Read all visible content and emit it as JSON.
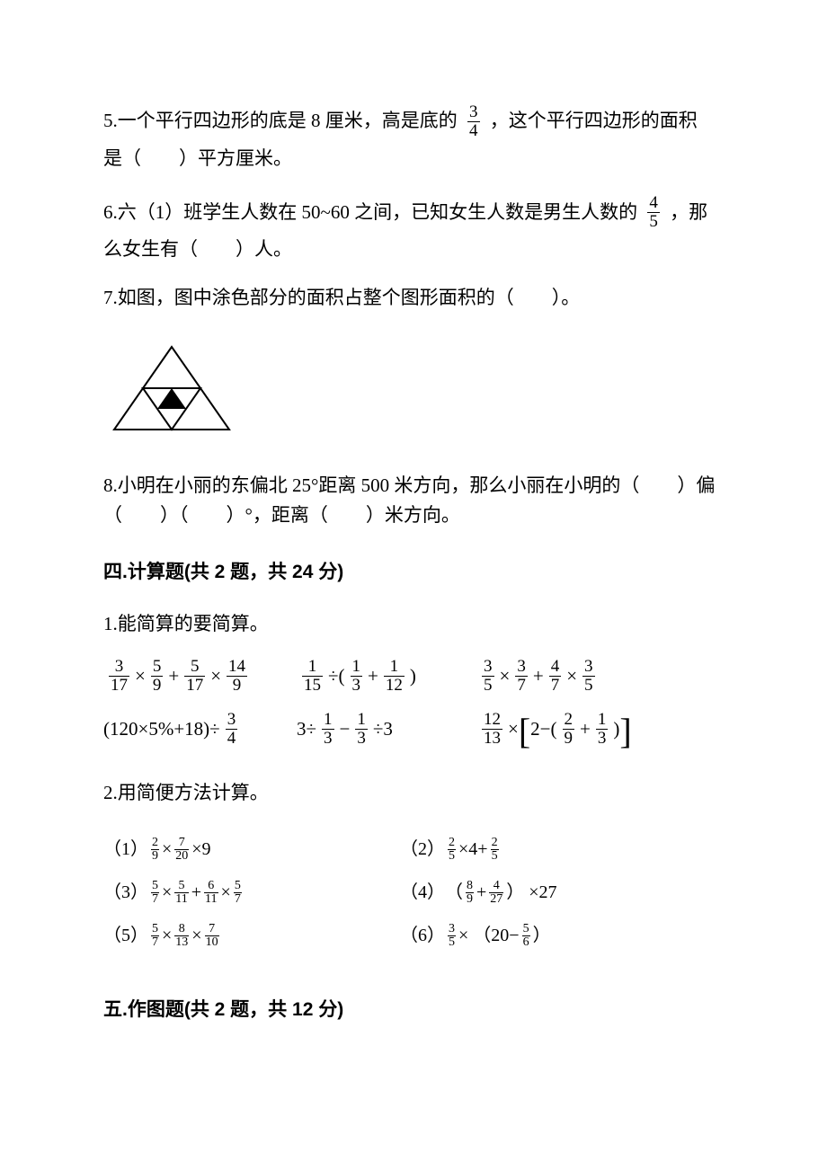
{
  "q5": {
    "part1": "5.一个平行四边形的底是 8 厘米，高是底的",
    "frac": {
      "num": "3",
      "den": "4"
    },
    "part2": "，这个平行四边形的面积",
    "line2": "是（　　）平方厘米。"
  },
  "q6": {
    "part1": "6.六（1）班学生人数在 50~60 之间，已知女生人数是男生人数的",
    "frac": {
      "num": "4",
      "den": "5"
    },
    "part2": "，那",
    "line2": "么女生有（　　）人。"
  },
  "q7": {
    "text": "7.如图，图中涂色部分的面积占整个图形面积的（　　）。"
  },
  "triangle": {
    "stroke": "#000000",
    "fill_inner": "#000000",
    "stroke_width": 2
  },
  "q8": {
    "line1": "8.小明在小丽的东偏北 25°距离 500 米方向，那么小丽在小明的（　　）偏",
    "line2": "（　　）（　　）°，距离（　　）米方向。"
  },
  "section4": {
    "heading": "四.计算题(共 2 题，共 24 分)",
    "q1_label": "1.能简算的要简算。",
    "eq": {
      "r1c1": {
        "type": "expr",
        "parts": [
          {
            "frac": {
              "n": "3",
              "d": "17"
            }
          },
          {
            "t": "×"
          },
          {
            "frac": {
              "n": "5",
              "d": "9"
            }
          },
          {
            "t": "+"
          },
          {
            "frac": {
              "n": "5",
              "d": "17"
            }
          },
          {
            "t": "×"
          },
          {
            "frac": {
              "n": "14",
              "d": "9"
            }
          }
        ]
      },
      "r1c2": {
        "type": "expr",
        "parts": [
          {
            "frac": {
              "n": "1",
              "d": "15"
            }
          },
          {
            "t": "÷("
          },
          {
            "frac": {
              "n": "1",
              "d": "3"
            }
          },
          {
            "t": "+"
          },
          {
            "frac": {
              "n": "1",
              "d": "12"
            }
          },
          {
            "t": ")"
          }
        ]
      },
      "r1c3": {
        "type": "expr",
        "parts": [
          {
            "frac": {
              "n": "3",
              "d": "5"
            }
          },
          {
            "t": "×"
          },
          {
            "frac": {
              "n": "3",
              "d": "7"
            }
          },
          {
            "t": "+"
          },
          {
            "frac": {
              "n": "4",
              "d": "7"
            }
          },
          {
            "t": "×"
          },
          {
            "frac": {
              "n": "3",
              "d": "5"
            }
          }
        ]
      },
      "r2c1": {
        "type": "expr",
        "parts": [
          {
            "t": "(120×5%+18)÷"
          },
          {
            "frac": {
              "n": "3",
              "d": "4"
            }
          }
        ]
      },
      "r2c2": {
        "type": "expr",
        "parts": [
          {
            "t": "3÷"
          },
          {
            "frac": {
              "n": "1",
              "d": "3"
            }
          },
          {
            "t": "−"
          },
          {
            "frac": {
              "n": "1",
              "d": "3"
            }
          },
          {
            "t": "÷3"
          }
        ]
      },
      "r2c3": {
        "type": "expr",
        "parts": [
          {
            "frac": {
              "n": "12",
              "d": "13"
            }
          },
          {
            "t": "×"
          },
          {
            "lb": "["
          },
          {
            "t": "2−("
          },
          {
            "frac": {
              "n": "2",
              "d": "9"
            }
          },
          {
            "t": "+"
          },
          {
            "frac": {
              "n": "1",
              "d": "3"
            }
          },
          {
            "t": ")"
          },
          {
            "rb": "]"
          }
        ]
      }
    },
    "q2_label": "2.用简便方法计算。",
    "q2": {
      "r1l": {
        "label": "（1）",
        "parts": [
          {
            "sfrac": {
              "n": "2",
              "d": "9"
            }
          },
          {
            "t": " × "
          },
          {
            "sfrac": {
              "n": "7",
              "d": "20"
            }
          },
          {
            "t": " ×9"
          }
        ]
      },
      "r1r": {
        "label": "（2）",
        "parts": [
          {
            "sfrac": {
              "n": "2",
              "d": "5"
            }
          },
          {
            "t": " ×4+ "
          },
          {
            "sfrac": {
              "n": "2",
              "d": "5"
            }
          }
        ]
      },
      "r2l": {
        "label": "（3）",
        "parts": [
          {
            "sfrac": {
              "n": "5",
              "d": "7"
            }
          },
          {
            "t": " × "
          },
          {
            "sfrac": {
              "n": "5",
              "d": "11"
            }
          },
          {
            "t": " + "
          },
          {
            "sfrac": {
              "n": "6",
              "d": "11"
            }
          },
          {
            "t": " × "
          },
          {
            "sfrac": {
              "n": "5",
              "d": "7"
            }
          }
        ]
      },
      "r2r": {
        "label": "（4）",
        "parts": [
          {
            "t": "（ "
          },
          {
            "sfrac": {
              "n": "8",
              "d": "9"
            }
          },
          {
            "t": " + "
          },
          {
            "sfrac": {
              "n": "4",
              "d": "27"
            }
          },
          {
            "t": " ） ×27"
          }
        ]
      },
      "r3l": {
        "label": "（5）",
        "parts": [
          {
            "sfrac": {
              "n": "5",
              "d": "7"
            }
          },
          {
            "t": " × "
          },
          {
            "sfrac": {
              "n": "8",
              "d": "13"
            }
          },
          {
            "t": " × "
          },
          {
            "sfrac": {
              "n": "7",
              "d": "10"
            }
          }
        ]
      },
      "r3r": {
        "label": "（6）",
        "parts": [
          {
            "sfrac": {
              "n": "3",
              "d": "5"
            }
          },
          {
            "t": " × （20− "
          },
          {
            "sfrac": {
              "n": "5",
              "d": "6"
            }
          },
          {
            "t": " ）"
          }
        ]
      }
    }
  },
  "section5": {
    "heading": "五.作图题(共 2 题，共 12 分)"
  }
}
